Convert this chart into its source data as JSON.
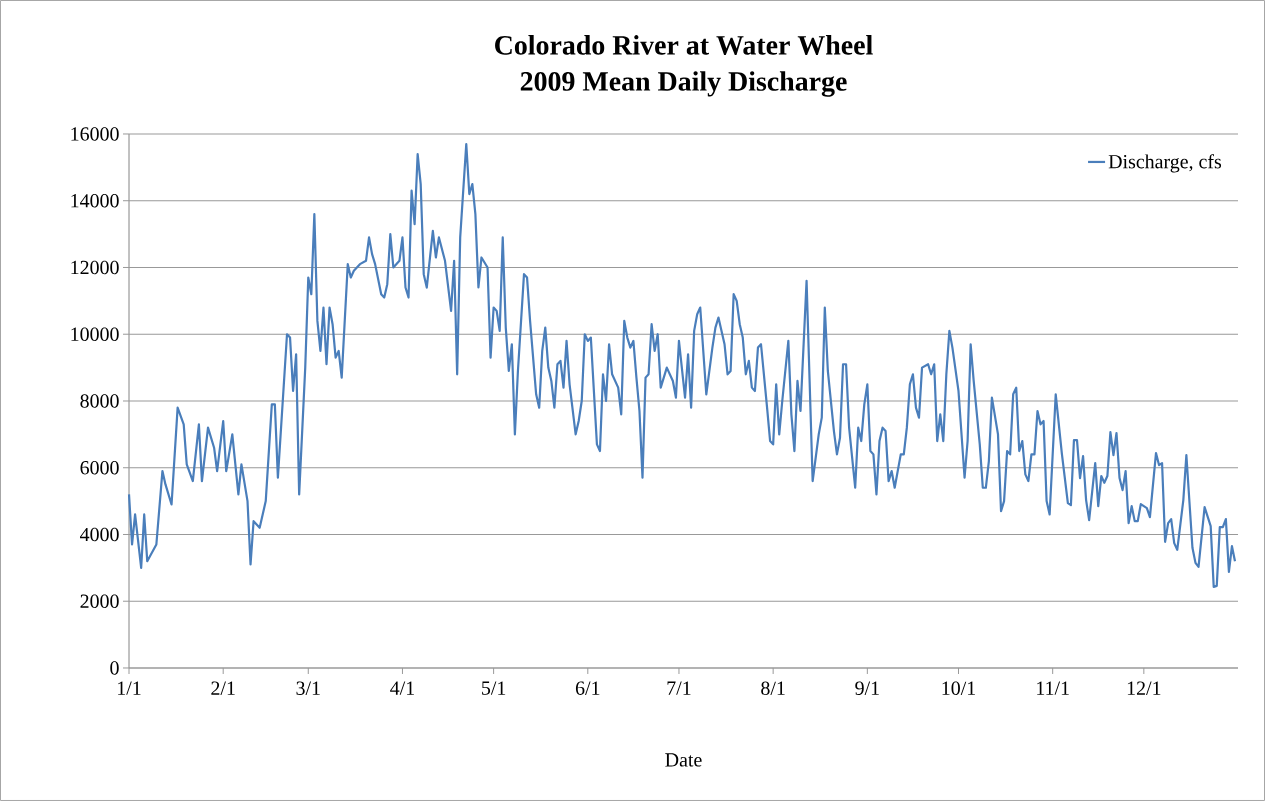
{
  "chart_data": {
    "type": "line",
    "title": "Colorado River at Water Wheel",
    "subtitle": "2009 Mean Daily Discharge",
    "xlabel": "Date",
    "xlim": [
      "2009-01-01",
      "2010-01-01"
    ],
    "xticks": [
      {
        "value": "2009-01-01",
        "label": "1/1"
      },
      {
        "value": "2009-02-01",
        "label": "2/1"
      },
      {
        "value": "2009-03-01",
        "label": "3/1"
      },
      {
        "value": "2009-04-01",
        "label": "4/1"
      },
      {
        "value": "2009-05-01",
        "label": "5/1"
      },
      {
        "value": "2009-06-01",
        "label": "6/1"
      },
      {
        "value": "2009-07-01",
        "label": "7/1"
      },
      {
        "value": "2009-08-01",
        "label": "8/1"
      },
      {
        "value": "2009-09-01",
        "label": "9/1"
      },
      {
        "value": "2009-10-01",
        "label": "10/1"
      },
      {
        "value": "2009-11-01",
        "label": "11/1"
      },
      {
        "value": "2009-12-01",
        "label": "12/1"
      }
    ],
    "ylim": [
      0,
      16000
    ],
    "yticks": [
      0,
      2000,
      4000,
      6000,
      8000,
      10000,
      12000,
      14000,
      16000
    ],
    "grid": "y",
    "legend": "top right",
    "series": [
      {
        "name": "Discharge, cfs",
        "color": "#4a7ebb",
        "x": [
          "2009-01-01",
          "2009-01-02",
          "2009-01-03",
          "2009-01-05",
          "2009-01-06",
          "2009-01-07",
          "2009-01-10",
          "2009-01-12",
          "2009-01-13",
          "2009-01-15",
          "2009-01-17",
          "2009-01-19",
          "2009-01-20",
          "2009-01-22",
          "2009-01-24",
          "2009-01-25",
          "2009-01-27",
          "2009-01-29",
          "2009-01-30",
          "2009-02-01",
          "2009-02-02",
          "2009-02-04",
          "2009-02-06",
          "2009-02-07",
          "2009-02-09",
          "2009-02-10",
          "2009-02-11",
          "2009-02-13",
          "2009-02-15",
          "2009-02-17",
          "2009-02-18",
          "2009-02-19",
          "2009-02-22",
          "2009-02-23",
          "2009-02-24",
          "2009-02-25",
          "2009-02-26",
          "2009-02-28",
          "2009-03-01",
          "2009-03-02",
          "2009-03-03",
          "2009-03-04",
          "2009-03-05",
          "2009-03-06",
          "2009-03-07",
          "2009-03-08",
          "2009-03-09",
          "2009-03-10",
          "2009-03-11",
          "2009-03-12",
          "2009-03-14",
          "2009-03-15",
          "2009-03-16",
          "2009-03-18",
          "2009-03-20",
          "2009-03-21",
          "2009-03-22",
          "2009-03-23",
          "2009-03-25",
          "2009-03-26",
          "2009-03-27",
          "2009-03-28",
          "2009-03-29",
          "2009-03-31",
          "2009-04-01",
          "2009-04-02",
          "2009-04-03",
          "2009-04-04",
          "2009-04-05",
          "2009-04-06",
          "2009-04-07",
          "2009-04-08",
          "2009-04-09",
          "2009-04-11",
          "2009-04-12",
          "2009-04-13",
          "2009-04-15",
          "2009-04-17",
          "2009-04-18",
          "2009-04-19",
          "2009-04-20",
          "2009-04-22",
          "2009-04-23",
          "2009-04-24",
          "2009-04-25",
          "2009-04-26",
          "2009-04-27",
          "2009-04-29",
          "2009-04-30",
          "2009-05-01",
          "2009-05-02",
          "2009-05-03",
          "2009-05-04",
          "2009-05-05",
          "2009-05-06",
          "2009-05-07",
          "2009-05-08",
          "2009-05-09",
          "2009-05-11",
          "2009-05-12",
          "2009-05-13",
          "2009-05-15",
          "2009-05-16",
          "2009-05-17",
          "2009-05-18",
          "2009-05-19",
          "2009-05-20",
          "2009-05-21",
          "2009-05-22",
          "2009-05-23",
          "2009-05-24",
          "2009-05-25",
          "2009-05-26",
          "2009-05-28",
          "2009-05-29",
          "2009-05-30",
          "2009-05-31",
          "2009-06-01",
          "2009-06-02",
          "2009-06-04",
          "2009-06-05",
          "2009-06-06",
          "2009-06-07",
          "2009-06-08",
          "2009-06-09",
          "2009-06-11",
          "2009-06-12",
          "2009-06-13",
          "2009-06-14",
          "2009-06-15",
          "2009-06-16",
          "2009-06-17",
          "2009-06-18",
          "2009-06-19",
          "2009-06-20",
          "2009-06-21",
          "2009-06-22",
          "2009-06-23",
          "2009-06-24",
          "2009-06-25",
          "2009-06-27",
          "2009-06-29",
          "2009-06-30",
          "2009-07-01",
          "2009-07-03",
          "2009-07-04",
          "2009-07-05",
          "2009-07-06",
          "2009-07-07",
          "2009-07-08",
          "2009-07-10",
          "2009-07-12",
          "2009-07-13",
          "2009-07-14",
          "2009-07-16",
          "2009-07-17",
          "2009-07-18",
          "2009-07-19",
          "2009-07-20",
          "2009-07-21",
          "2009-07-22",
          "2009-07-23",
          "2009-07-24",
          "2009-07-25",
          "2009-07-26",
          "2009-07-27",
          "2009-07-28",
          "2009-07-30",
          "2009-07-31",
          "2009-08-01",
          "2009-08-02",
          "2009-08-03",
          "2009-08-04",
          "2009-08-06",
          "2009-08-07",
          "2009-08-08",
          "2009-08-09",
          "2009-08-10",
          "2009-08-12",
          "2009-08-14",
          "2009-08-16",
          "2009-08-17",
          "2009-08-18",
          "2009-08-19",
          "2009-08-21",
          "2009-08-22",
          "2009-08-23",
          "2009-08-24",
          "2009-08-25",
          "2009-08-26",
          "2009-08-28",
          "2009-08-29",
          "2009-08-30",
          "2009-08-31",
          "2009-09-01",
          "2009-09-02",
          "2009-09-03",
          "2009-09-04",
          "2009-09-05",
          "2009-09-06",
          "2009-09-07",
          "2009-09-08",
          "2009-09-09",
          "2009-09-10",
          "2009-09-12",
          "2009-09-13",
          "2009-09-14",
          "2009-09-15",
          "2009-09-16",
          "2009-09-17",
          "2009-09-18",
          "2009-09-19",
          "2009-09-21",
          "2009-09-22",
          "2009-09-23",
          "2009-09-24",
          "2009-09-25",
          "2009-09-26",
          "2009-09-27",
          "2009-09-28",
          "2009-09-29",
          "2009-10-01",
          "2009-10-03",
          "2009-10-04",
          "2009-10-05",
          "2009-10-06",
          "2009-10-08",
          "2009-10-09",
          "2009-10-10",
          "2009-10-11",
          "2009-10-12",
          "2009-10-14",
          "2009-10-15",
          "2009-10-16",
          "2009-10-17",
          "2009-10-18",
          "2009-10-19",
          "2009-10-20",
          "2009-10-21",
          "2009-10-22",
          "2009-10-23",
          "2009-10-24",
          "2009-10-25",
          "2009-10-26",
          "2009-10-27",
          "2009-10-28",
          "2009-10-29",
          "2009-10-30",
          "2009-10-31",
          "2009-11-02",
          "2009-11-04",
          "2009-11-06",
          "2009-11-07",
          "2009-11-08",
          "2009-11-09",
          "2009-11-10",
          "2009-11-11",
          "2009-11-12",
          "2009-11-13",
          "2009-11-15",
          "2009-11-16",
          "2009-11-17",
          "2009-11-18",
          "2009-11-19",
          "2009-11-20",
          "2009-11-21",
          "2009-11-22",
          "2009-11-23",
          "2009-11-24",
          "2009-11-25",
          "2009-11-26",
          "2009-11-27",
          "2009-11-28",
          "2009-11-29",
          "2009-11-30",
          "2009-12-02",
          "2009-12-03",
          "2009-12-05",
          "2009-12-06",
          "2009-12-07",
          "2009-12-08",
          "2009-12-09",
          "2009-12-10",
          "2009-12-11",
          "2009-12-12",
          "2009-12-14",
          "2009-12-15",
          "2009-12-17",
          "2009-12-18",
          "2009-12-19",
          "2009-12-21",
          "2009-12-23",
          "2009-12-24",
          "2009-12-25",
          "2009-12-26",
          "2009-12-27",
          "2009-12-28",
          "2009-12-29",
          "2009-12-30",
          "2009-12-31"
        ],
        "values": [
          5200,
          3700,
          4600,
          3000,
          4600,
          3200,
          3700,
          5900,
          5500,
          4900,
          7800,
          7300,
          6100,
          5600,
          7300,
          5600,
          7200,
          6600,
          5900,
          7400,
          5900,
          7000,
          5200,
          6100,
          5000,
          3100,
          4400,
          4200,
          5000,
          7900,
          7900,
          5700,
          10000,
          9900,
          8300,
          9400,
          5200,
          9000,
          11700,
          11200,
          13600,
          10400,
          9500,
          10800,
          9100,
          10800,
          10300,
          9300,
          9500,
          8700,
          12100,
          11700,
          11900,
          12100,
          12200,
          12900,
          12400,
          12100,
          11200,
          11100,
          11500,
          13000,
          12000,
          12200,
          12900,
          11400,
          11100,
          14300,
          13300,
          15400,
          14500,
          11800,
          11400,
          13100,
          12300,
          12900,
          12200,
          10700,
          12200,
          8800,
          12900,
          15700,
          14200,
          14500,
          13600,
          11400,
          12300,
          12000,
          9300,
          10800,
          10700,
          10100,
          12900,
          10200,
          8900,
          9700,
          7000,
          8900,
          11800,
          11700,
          10400,
          8200,
          7800,
          9500,
          10200,
          9000,
          8600,
          7800,
          9100,
          9200,
          8400,
          9800,
          8500,
          7000,
          7400,
          8000,
          10000,
          9800,
          9900,
          6700,
          6500,
          8800,
          8000,
          9700,
          8800,
          8400,
          7600,
          10400,
          9900,
          9600,
          9800,
          8700,
          7700,
          5700,
          8700,
          8800,
          10300,
          9500,
          10000,
          8400,
          9000,
          8600,
          8100,
          9800,
          8100,
          9400,
          7800,
          10100,
          10600,
          10800,
          8200,
          9600,
          10200,
          10500,
          9700,
          8800,
          8900,
          11200,
          11000,
          10300,
          9900,
          8800,
          9200,
          8400,
          8300,
          9600,
          9700,
          7800,
          6800,
          6700,
          8500,
          7000,
          8000,
          9800,
          7600,
          6500,
          8600,
          7700,
          11600,
          5600,
          7000,
          7500,
          10800,
          8900,
          7100,
          6400,
          6900,
          9100,
          9100,
          7200,
          5400,
          7200,
          6800,
          7900,
          8500,
          6500,
          6400,
          5200,
          6800,
          7200,
          7100,
          5600,
          5900,
          5400,
          6400,
          6400,
          7200,
          8500,
          8800,
          7800,
          7500,
          9000,
          9100,
          8800,
          9100,
          6800,
          7600,
          6800,
          8800,
          10100,
          9600,
          8300,
          5700,
          6800,
          9700,
          8600,
          6700,
          5400,
          5400,
          6200,
          8100,
          7000,
          4700,
          5000,
          6500,
          6400,
          8200,
          8400,
          6500,
          6800,
          5800,
          5600,
          6400,
          6400,
          7700,
          7300,
          7400,
          5000,
          4600,
          8200,
          6440,
          4940,
          4880,
          6830,
          6830,
          5690,
          6350,
          5030,
          4430,
          6140,
          4850,
          5750,
          5550,
          5750,
          7070,
          6380,
          7040,
          5690,
          5330,
          5900,
          4340,
          4850,
          4400,
          4400,
          4910,
          4790,
          4520,
          6440,
          6080,
          6140,
          3780,
          4340,
          4460,
          3740,
          3540,
          5030,
          6380,
          3600,
          3150,
          3030,
          4820,
          4250,
          2430,
          2460,
          4220,
          4220,
          4460,
          2880,
          3650,
          3200
        ]
      }
    ]
  }
}
